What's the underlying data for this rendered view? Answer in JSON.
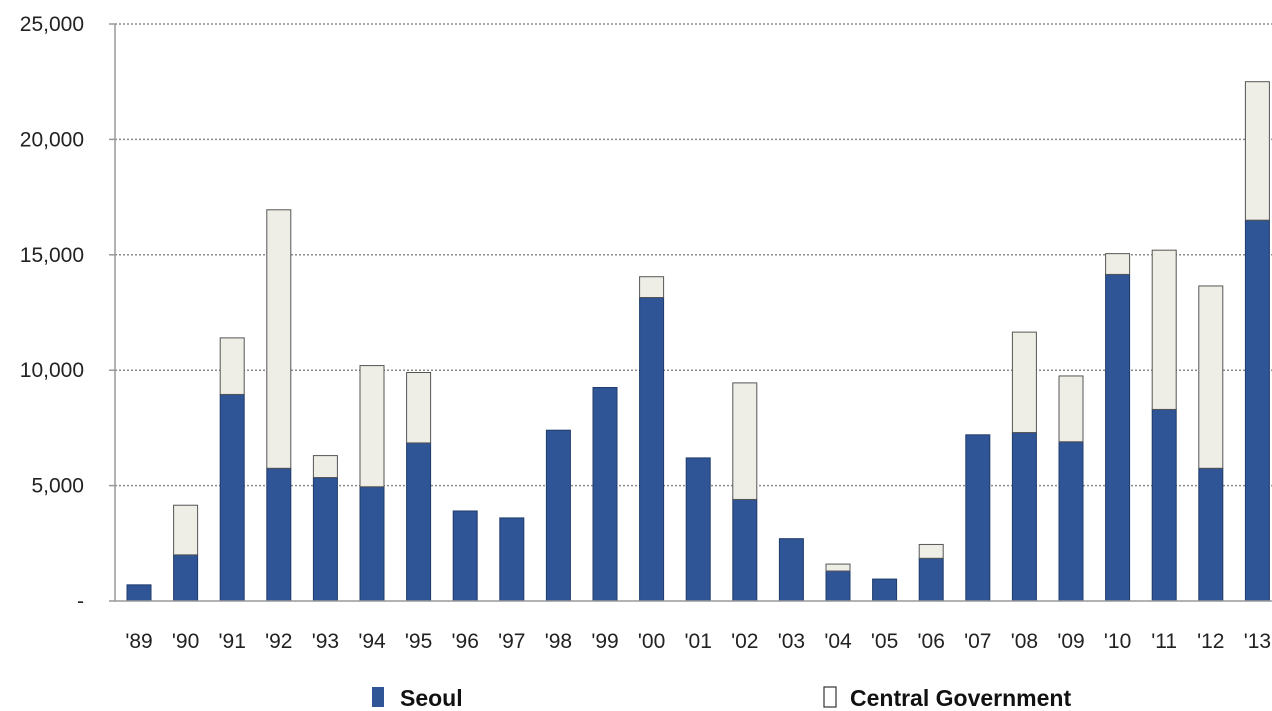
{
  "chart_data": {
    "type": "bar",
    "stacked": true,
    "categories": [
      "'89",
      "'90",
      "'91",
      "'92",
      "'93",
      "'94",
      "'95",
      "'96",
      "'97",
      "'98",
      "'99",
      "'00",
      "'01",
      "'02",
      "'03",
      "'04",
      "'05",
      "'06",
      "'07",
      "'08",
      "'09",
      "'10",
      "'11",
      "'12",
      "'13"
    ],
    "series": [
      {
        "name": "Seoul",
        "color": "#2f5597",
        "values": [
          700,
          2000,
          8950,
          5750,
          5350,
          4950,
          6850,
          3900,
          3600,
          7400,
          9250,
          13150,
          6200,
          4400,
          2700,
          1300,
          950,
          1850,
          7200,
          7300,
          6900,
          14150,
          8300,
          5750,
          16500
        ]
      },
      {
        "name": "Central Government",
        "color": "#eeeee6",
        "values": [
          0,
          2150,
          2450,
          11200,
          950,
          5250,
          3050,
          0,
          0,
          0,
          0,
          900,
          0,
          5050,
          0,
          300,
          0,
          600,
          0,
          4350,
          2850,
          900,
          6900,
          7900,
          6000
        ]
      }
    ],
    "y_tick_values": [
      0,
      5000,
      10000,
      15000,
      20000,
      25000
    ],
    "y_tick_labels": [
      "-",
      "5,000",
      "10,000",
      "15,000",
      "20,000",
      "25,000"
    ],
    "ylim": [
      0,
      25000
    ],
    "grid": true,
    "legend_position": "bottom",
    "legend_labels": [
      "Seoul",
      "Central Government"
    ],
    "title": "",
    "xlabel": "",
    "ylabel": ""
  }
}
